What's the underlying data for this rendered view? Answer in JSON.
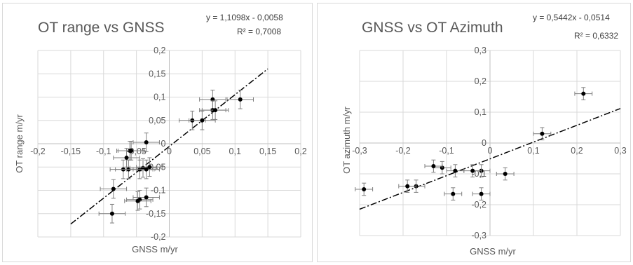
{
  "chart_data": [
    {
      "type": "scatter",
      "title": "OT range vs GNSS",
      "xlabel": "GNSS m/yr",
      "ylabel": "OT range  m/yr",
      "xlim": [
        -0.2,
        0.2
      ],
      "ylim": [
        -0.2,
        0.2
      ],
      "xticks": [
        -0.2,
        -0.15,
        -0.1,
        -0.05,
        0,
        0.05,
        0.1,
        0.15,
        0.2
      ],
      "yticks": [
        -0.2,
        -0.15,
        -0.1,
        -0.05,
        0,
        0.05,
        0.1,
        0.15,
        0.2
      ],
      "xtick_labels": [
        "-0,2",
        "-0,15",
        "-0,1",
        "-0,05",
        "0",
        "0,05",
        "0,1",
        "0,15",
        "0,2"
      ],
      "ytick_labels": [
        "-0,2",
        "-0,15",
        "-0,1",
        "-0,05",
        "0",
        "0,05",
        "0,1",
        "0,15",
        "0,2"
      ],
      "grid": true,
      "equation": "y = 1,1098x - 0,0058",
      "r2": "R² = 0,7008",
      "trendline": {
        "slope": 1.1098,
        "intercept": -0.0058,
        "x_range": [
          -0.15,
          0.15
        ]
      },
      "points": [
        {
          "x": 0.108,
          "y": 0.095,
          "xerr": 0.02,
          "yerr": 0.02
        },
        {
          "x": 0.066,
          "y": 0.095,
          "xerr": 0.02,
          "yerr": 0.02
        },
        {
          "x": 0.066,
          "y": 0.072,
          "xerr": 0.02,
          "yerr": 0.02
        },
        {
          "x": 0.07,
          "y": 0.072,
          "xerr": 0.02,
          "yerr": 0.02
        },
        {
          "x": 0.035,
          "y": 0.05,
          "xerr": 0.02,
          "yerr": 0.02
        },
        {
          "x": 0.05,
          "y": 0.05,
          "xerr": 0.02,
          "yerr": 0.02
        },
        {
          "x": -0.035,
          "y": 0.003,
          "xerr": 0.02,
          "yerr": 0.02
        },
        {
          "x": -0.06,
          "y": -0.015,
          "xerr": 0.02,
          "yerr": 0.02
        },
        {
          "x": -0.058,
          "y": -0.015,
          "xerr": 0.02,
          "yerr": 0.02
        },
        {
          "x": -0.065,
          "y": -0.03,
          "xerr": 0.02,
          "yerr": 0.02
        },
        {
          "x": -0.07,
          "y": -0.055,
          "xerr": 0.02,
          "yerr": 0.02
        },
        {
          "x": -0.062,
          "y": -0.055,
          "xerr": 0.02,
          "yerr": 0.02
        },
        {
          "x": -0.045,
          "y": -0.055,
          "xerr": 0.02,
          "yerr": 0.02
        },
        {
          "x": -0.04,
          "y": -0.052,
          "xerr": 0.02,
          "yerr": 0.02
        },
        {
          "x": -0.035,
          "y": -0.055,
          "xerr": 0.02,
          "yerr": 0.02
        },
        {
          "x": -0.03,
          "y": -0.05,
          "xerr": 0.02,
          "yerr": 0.02
        },
        {
          "x": -0.085,
          "y": -0.097,
          "xerr": 0.02,
          "yerr": 0.02
        },
        {
          "x": -0.035,
          "y": -0.115,
          "xerr": 0.02,
          "yerr": 0.02
        },
        {
          "x": -0.045,
          "y": -0.12,
          "xerr": 0.02,
          "yerr": 0.02
        },
        {
          "x": -0.048,
          "y": -0.123,
          "xerr": 0.02,
          "yerr": 0.02
        },
        {
          "x": -0.087,
          "y": -0.15,
          "xerr": 0.02,
          "yerr": 0.02
        }
      ]
    },
    {
      "type": "scatter",
      "title": "GNSS vs OT Azimuth",
      "xlabel": "GNSS m/yr",
      "ylabel": "OT azimuth m/yr",
      "xlim": [
        -0.3,
        0.3
      ],
      "ylim": [
        -0.3,
        0.3
      ],
      "xticks": [
        -0.3,
        -0.2,
        -0.1,
        0,
        0.1,
        0.2,
        0.3
      ],
      "yticks": [
        -0.3,
        -0.2,
        -0.1,
        0,
        0.1,
        0.2,
        0.3
      ],
      "xtick_labels": [
        "-0,3",
        "-0,2",
        "-0,1",
        "0",
        "0,1",
        "0,2",
        "0,3"
      ],
      "ytick_labels": [
        "-0,3",
        "-0,2",
        "-0,1",
        "0",
        "0,1",
        "0,2",
        "0,3"
      ],
      "grid": true,
      "equation": "y = 0,5442x - 0,0514",
      "r2": "R² = 0,6332",
      "trendline": {
        "slope": 0.5442,
        "intercept": -0.0514,
        "x_range": [
          -0.3,
          0.3
        ]
      },
      "points": [
        {
          "x": 0.215,
          "y": 0.16,
          "xerr": 0.02,
          "yerr": 0.02
        },
        {
          "x": 0.12,
          "y": 0.03,
          "xerr": 0.02,
          "yerr": 0.02
        },
        {
          "x": 0.035,
          "y": -0.1,
          "xerr": 0.02,
          "yerr": 0.02
        },
        {
          "x": -0.02,
          "y": -0.09,
          "xerr": 0.02,
          "yerr": 0.02
        },
        {
          "x": -0.04,
          "y": -0.09,
          "xerr": 0.02,
          "yerr": 0.02
        },
        {
          "x": -0.08,
          "y": -0.09,
          "xerr": 0.02,
          "yerr": 0.02
        },
        {
          "x": -0.11,
          "y": -0.08,
          "xerr": 0.02,
          "yerr": 0.02
        },
        {
          "x": -0.13,
          "y": -0.075,
          "xerr": 0.02,
          "yerr": 0.02
        },
        {
          "x": -0.17,
          "y": -0.14,
          "xerr": 0.02,
          "yerr": 0.02
        },
        {
          "x": -0.19,
          "y": -0.14,
          "xerr": 0.02,
          "yerr": 0.02
        },
        {
          "x": -0.29,
          "y": -0.15,
          "xerr": 0.02,
          "yerr": 0.02
        },
        {
          "x": -0.085,
          "y": -0.165,
          "xerr": 0.02,
          "yerr": 0.02
        },
        {
          "x": -0.02,
          "y": -0.165,
          "xerr": 0.02,
          "yerr": 0.02
        }
      ]
    }
  ]
}
